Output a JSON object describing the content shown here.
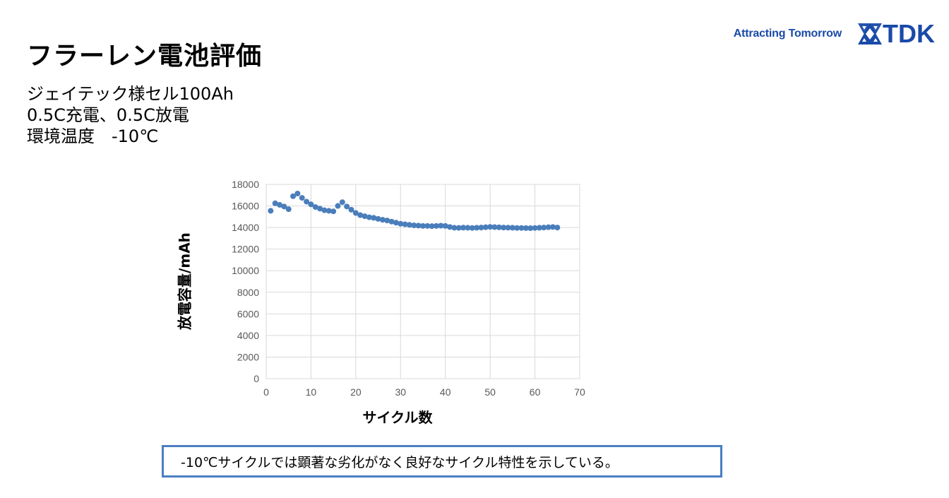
{
  "header": {
    "title": "フラーレン電池評価",
    "subtitle_lines": [
      "ジェイテック様セル100Ah",
      "0.5C充電、0.5C放電",
      "環境温度　-10℃"
    ]
  },
  "brand": {
    "tagline": "Attracting Tomorrow",
    "logo_text": "TDK",
    "logo_icon": "tdk-star-icon",
    "color": "#1a4aa8"
  },
  "conclusion": {
    "text": "-10℃サイクルでは顕著な劣化がなく良好なサイクル特性を示している。",
    "border_color": "#4a7ec2"
  },
  "chart_data": {
    "type": "scatter",
    "title": "",
    "xlabel": "サイクル数",
    "ylabel": "放電容量/mAh",
    "xlim": [
      0,
      70
    ],
    "ylim": [
      0,
      18000
    ],
    "xticks": [
      0,
      10,
      20,
      30,
      40,
      50,
      60,
      70
    ],
    "yticks": [
      0,
      2000,
      4000,
      6000,
      8000,
      10000,
      12000,
      14000,
      16000,
      18000
    ],
    "grid": true,
    "legend": null,
    "marker_color": "#4a7ebb",
    "series": [
      {
        "name": "放電容量",
        "x": [
          1,
          2,
          3,
          4,
          5,
          6,
          7,
          8,
          9,
          10,
          11,
          12,
          13,
          14,
          15,
          16,
          17,
          18,
          19,
          20,
          21,
          22,
          23,
          24,
          25,
          26,
          27,
          28,
          29,
          30,
          31,
          32,
          33,
          34,
          35,
          36,
          37,
          38,
          39,
          40,
          41,
          42,
          43,
          44,
          45,
          46,
          47,
          48,
          49,
          50,
          51,
          52,
          53,
          54,
          55,
          56,
          57,
          58,
          59,
          60,
          61,
          62,
          63,
          64,
          65
        ],
        "y": [
          15550,
          16250,
          16100,
          15950,
          15700,
          16900,
          17150,
          16750,
          16400,
          16150,
          15900,
          15750,
          15600,
          15550,
          15500,
          16000,
          16350,
          15950,
          15650,
          15350,
          15150,
          15050,
          14950,
          14900,
          14800,
          14720,
          14650,
          14550,
          14450,
          14350,
          14300,
          14250,
          14200,
          14180,
          14150,
          14150,
          14130,
          14150,
          14170,
          14150,
          14050,
          13980,
          13970,
          13990,
          13980,
          13960,
          13980,
          14000,
          14030,
          14060,
          14040,
          14020,
          14000,
          13990,
          13980,
          13960,
          13960,
          13950,
          13940,
          13960,
          13980,
          14000,
          14030,
          14050,
          14000
        ]
      }
    ]
  }
}
